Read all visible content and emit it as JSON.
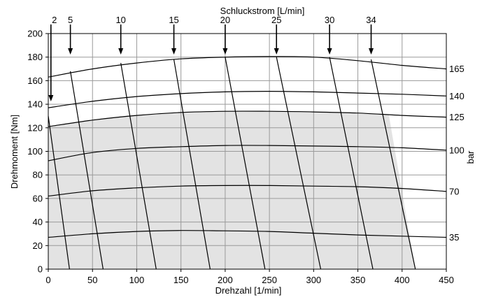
{
  "chart_data": {
    "type": "line",
    "title": "",
    "top_axis_label": "Schluckstrom [L/min]",
    "xlabel": "Drehzahl [1/min]",
    "ylabel": "Drehmoment [Nm]",
    "right_axis_label": "bar",
    "xlim": [
      0,
      450
    ],
    "ylim": [
      0,
      200
    ],
    "x_ticks": [
      0,
      50,
      100,
      150,
      200,
      250,
      300,
      350,
      400,
      450
    ],
    "y_ticks": [
      0,
      20,
      40,
      60,
      80,
      100,
      120,
      140,
      160,
      180,
      200
    ],
    "grid": true,
    "shaded_operating_region": [
      [
        0,
        0
      ],
      [
        0,
        121
      ],
      [
        50,
        127
      ],
      [
        100,
        131
      ],
      [
        150,
        133
      ],
      [
        200,
        134
      ],
      [
        250,
        134
      ],
      [
        300,
        133.5
      ],
      [
        350,
        132
      ],
      [
        385,
        131
      ],
      [
        415,
        0
      ]
    ],
    "pressure_series": [
      {
        "name": "165",
        "points": [
          [
            0,
            163
          ],
          [
            50,
            170
          ],
          [
            100,
            175
          ],
          [
            150,
            178.5
          ],
          [
            200,
            180
          ],
          [
            250,
            180.5
          ],
          [
            300,
            180
          ],
          [
            350,
            177
          ],
          [
            400,
            173
          ],
          [
            450,
            170
          ]
        ]
      },
      {
        "name": "140",
        "points": [
          [
            0,
            137
          ],
          [
            50,
            142.5
          ],
          [
            100,
            146.5
          ],
          [
            150,
            149
          ],
          [
            200,
            150.5
          ],
          [
            250,
            151
          ],
          [
            300,
            150.5
          ],
          [
            350,
            149.5
          ],
          [
            400,
            148.5
          ],
          [
            450,
            147
          ]
        ]
      },
      {
        "name": "125",
        "points": [
          [
            0,
            121
          ],
          [
            50,
            126.5
          ],
          [
            100,
            130.5
          ],
          [
            150,
            133
          ],
          [
            200,
            134
          ],
          [
            250,
            134
          ],
          [
            300,
            133.5
          ],
          [
            350,
            132.5
          ],
          [
            400,
            130.5
          ],
          [
            450,
            129
          ]
        ]
      },
      {
        "name": "100",
        "points": [
          [
            0,
            92
          ],
          [
            50,
            99
          ],
          [
            100,
            102.5
          ],
          [
            150,
            104
          ],
          [
            200,
            105
          ],
          [
            250,
            105
          ],
          [
            300,
            104.5
          ],
          [
            350,
            104
          ],
          [
            400,
            103
          ],
          [
            450,
            101
          ]
        ]
      },
      {
        "name": "70",
        "points": [
          [
            0,
            62
          ],
          [
            50,
            66.5
          ],
          [
            100,
            69
          ],
          [
            150,
            70.5
          ],
          [
            200,
            71
          ],
          [
            250,
            71
          ],
          [
            300,
            70.5
          ],
          [
            350,
            70
          ],
          [
            400,
            68.5
          ],
          [
            450,
            66
          ]
        ]
      },
      {
        "name": "35",
        "points": [
          [
            0,
            27
          ],
          [
            50,
            30
          ],
          [
            100,
            32
          ],
          [
            150,
            32.8
          ],
          [
            200,
            32.5
          ],
          [
            250,
            32
          ],
          [
            300,
            30.5
          ],
          [
            350,
            29
          ],
          [
            400,
            28
          ],
          [
            450,
            27
          ]
        ]
      }
    ],
    "flow_series": [
      {
        "name": "2",
        "arrow_x": 3,
        "points": [
          [
            0,
            130
          ],
          [
            24,
            0
          ]
        ]
      },
      {
        "name": "5",
        "arrow_x": 25,
        "points": [
          [
            25,
            168
          ],
          [
            62,
            0
          ]
        ]
      },
      {
        "name": "10",
        "arrow_x": 82,
        "points": [
          [
            82,
            175
          ],
          [
            122,
            0
          ]
        ]
      },
      {
        "name": "15",
        "arrow_x": 142,
        "points": [
          [
            142,
            178
          ],
          [
            183,
            0
          ]
        ]
      },
      {
        "name": "20",
        "arrow_x": 200,
        "points": [
          [
            200,
            180
          ],
          [
            245,
            0
          ]
        ]
      },
      {
        "name": "25",
        "arrow_x": 258,
        "points": [
          [
            258,
            180
          ],
          [
            308,
            0
          ]
        ]
      },
      {
        "name": "30",
        "arrow_x": 318,
        "points": [
          [
            318,
            180
          ],
          [
            367,
            0
          ]
        ]
      },
      {
        "name": "34",
        "arrow_x": 365,
        "points": [
          [
            365,
            178
          ],
          [
            415,
            0
          ]
        ]
      }
    ]
  }
}
